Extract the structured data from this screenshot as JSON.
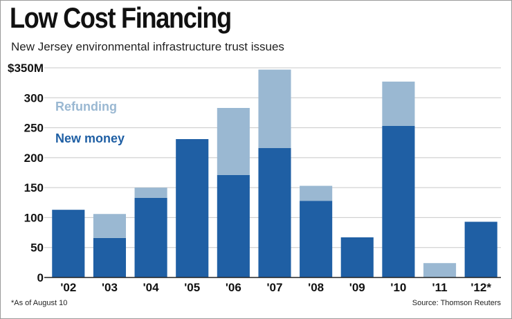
{
  "header": {
    "title": "Low Cost Financing",
    "subtitle": "New Jersey environmental infrastructure trust issues"
  },
  "footer": {
    "note": "*As of August 10",
    "source": "Source: Thomson Reuters"
  },
  "colors": {
    "new_money": "#1f5fa4",
    "refunding": "#9ab8d2",
    "grid": "#c8c8c8",
    "axis": "#222222"
  },
  "chart_data": {
    "type": "bar",
    "stacked": true,
    "categories": [
      "'02",
      "'03",
      "'04",
      "'05",
      "'06",
      "'07",
      "'08",
      "'09",
      "'10",
      "'11",
      "'12*"
    ],
    "series": [
      {
        "name": "New money",
        "values": [
          113,
          66,
          133,
          231,
          171,
          216,
          128,
          67,
          253,
          0,
          93
        ]
      },
      {
        "name": "Refunding",
        "values": [
          0,
          40,
          17,
          0,
          112,
          131,
          25,
          0,
          74,
          24,
          0
        ]
      }
    ],
    "ylim": [
      0,
      350
    ],
    "yticks": [
      0,
      50,
      100,
      150,
      200,
      250,
      300,
      350
    ],
    "ytick_labels": [
      "0",
      "50",
      "100",
      "150",
      "200",
      "250",
      "300",
      "$350M"
    ],
    "grid": true,
    "legend": {
      "placement": "top-left",
      "entries": [
        "Refunding",
        "New money"
      ]
    },
    "title": "",
    "xlabel": "",
    "ylabel": ""
  }
}
